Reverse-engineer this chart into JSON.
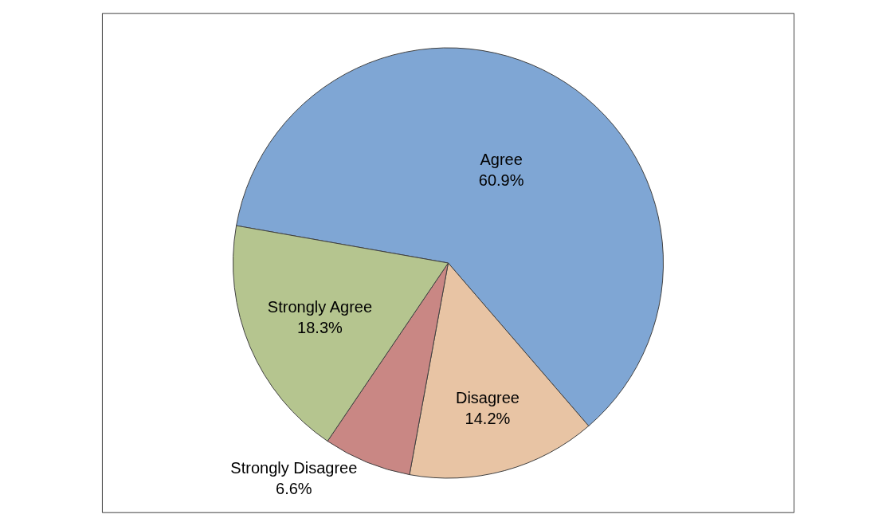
{
  "chart_data": {
    "type": "pie",
    "categories": [
      "Agree",
      "Disagree",
      "Strongly Disagree",
      "Strongly Agree"
    ],
    "values": [
      60.9,
      14.2,
      6.6,
      18.3
    ],
    "value_labels": [
      "60.9%",
      "14.2%",
      "6.6%",
      "18.3%"
    ],
    "colors": [
      "#7fa6d4",
      "#e8c4a4",
      "#c98784",
      "#b5c58f"
    ],
    "legend": false
  }
}
